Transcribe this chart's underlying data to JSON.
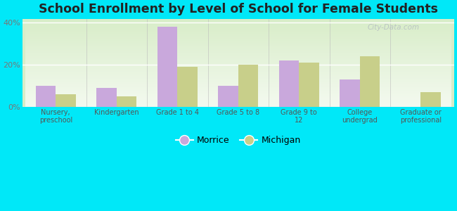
{
  "title": "School Enrollment by Level of School for Female Students",
  "categories": [
    "Nursery,\npreschool",
    "Kindergarten",
    "Grade 1 to 4",
    "Grade 5 to 8",
    "Grade 9 to\n12",
    "College\nundergrad",
    "Graduate or\nprofessional"
  ],
  "morrice": [
    10,
    9,
    38,
    10,
    22,
    13,
    0
  ],
  "michigan": [
    6,
    5,
    19,
    20,
    21,
    24,
    7
  ],
  "morrice_color": "#c9a8dc",
  "michigan_color": "#c8cf8a",
  "background_outer": "#00e8f8",
  "ylim": [
    0,
    42
  ],
  "yticks": [
    0,
    20,
    40
  ],
  "ytick_labels": [
    "0%",
    "20%",
    "40%"
  ],
  "bar_width": 0.33,
  "title_fontsize": 12.5,
  "legend_labels": [
    "Morrice",
    "Michigan"
  ],
  "watermark": "City-Data.com"
}
